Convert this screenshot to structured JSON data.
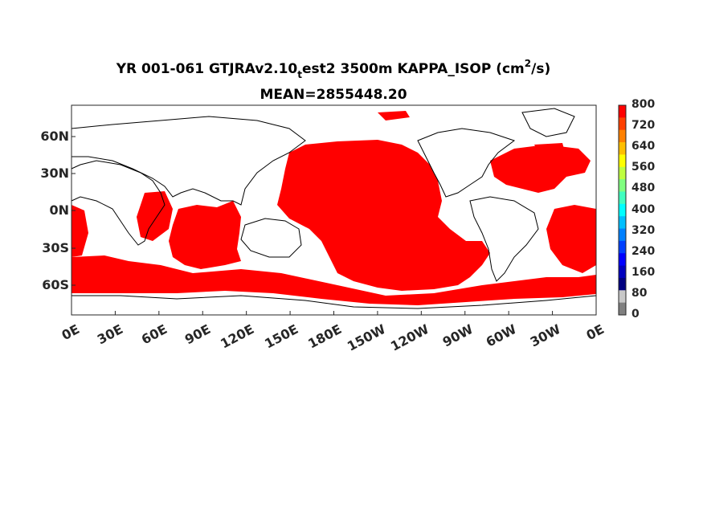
{
  "title": {
    "line1_prefix": "YR 001-061 GTJRAv2.10",
    "line1_sub": "t",
    "line1_mid": "est2 3500m KAPPA_ISOP (cm",
    "line1_sup": "2",
    "line1_suffix": "/s)",
    "line2": "MEAN=2855448.20"
  },
  "map": {
    "fill_color": "#ff0000",
    "land_color": "#ffffff",
    "coast_color": "#000000"
  },
  "axes": {
    "y_ticks": [
      "60N",
      "30N",
      "0N",
      "30S",
      "60S"
    ],
    "x_ticks": [
      "0E",
      "30E",
      "60E",
      "90E",
      "120E",
      "150E",
      "180E",
      "150W",
      "120W",
      "90W",
      "60W",
      "30W",
      "0E"
    ]
  },
  "colorbar": {
    "labels": [
      "800",
      "720",
      "640",
      "560",
      "480",
      "400",
      "320",
      "240",
      "160",
      "80",
      "0"
    ],
    "colors": [
      "#ff0000",
      "#ff4000",
      "#ff8000",
      "#ffbf00",
      "#ffff00",
      "#bfff40",
      "#80ff80",
      "#40ffbf",
      "#00ffff",
      "#00bfff",
      "#0080ff",
      "#0040ff",
      "#0000ff",
      "#0000bf",
      "#000080",
      "#c8c8c8",
      "#808080"
    ]
  }
}
